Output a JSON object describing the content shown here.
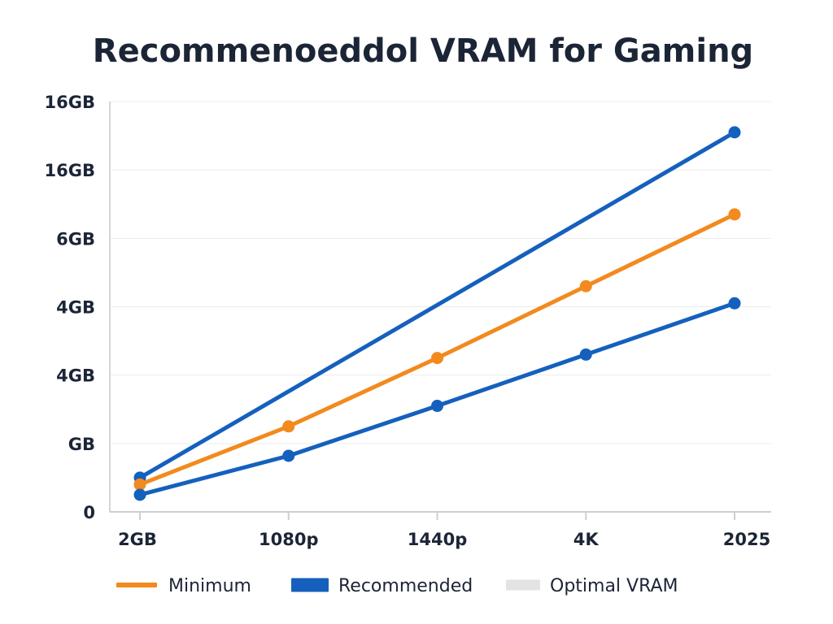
{
  "chart_data": {
    "type": "line",
    "title": "Recommenoeddol VRAM for Gaming",
    "xlabel": "",
    "ylabel": "",
    "categories": [
      "2GB",
      "1080p",
      "1440p",
      "4K",
      "2025"
    ],
    "y_tick_labels": [
      "0",
      "GB",
      "4GB",
      "4GB",
      "6GB",
      "16GB",
      "16GB"
    ],
    "ylim": [
      0,
      6
    ],
    "grid": true,
    "legend_position": "bottom",
    "legend": [
      {
        "label": "Minimum",
        "color": "#f28a1e"
      },
      {
        "label": "Recommended",
        "color": "#1560bd"
      },
      {
        "label": "Optimal VRAM",
        "color": "#e3e3e3"
      }
    ],
    "series": [
      {
        "name": "",
        "color": "#1560bd",
        "values": [
          0.5,
          null,
          null,
          null,
          5.55
        ]
      },
      {
        "name": "Minimum",
        "color": "#f28a1e",
        "values": [
          0.4,
          1.25,
          2.25,
          3.3,
          4.35
        ]
      },
      {
        "name": "Recommended",
        "color": "#1560bd",
        "values": [
          0.25,
          0.82,
          1.55,
          2.3,
          3.05
        ]
      }
    ]
  }
}
